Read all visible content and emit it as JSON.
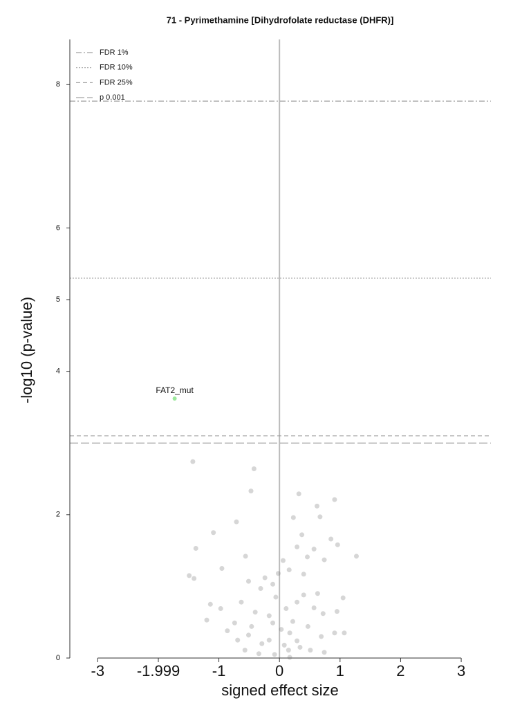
{
  "chart_data": {
    "type": "scatter",
    "title": "71 - Pyrimethamine [Dihydrofolate reductase (DHFR)]",
    "xlabel": "signed effect size",
    "ylabel": "-log10 (p-value)",
    "xlim": [
      -3.46,
      3.49
    ],
    "ylim": [
      0,
      8.63
    ],
    "xticks": [
      -3,
      -1.999,
      -1,
      0,
      1,
      2,
      3
    ],
    "yticks": [
      0,
      2,
      4,
      5,
      6,
      8
    ],
    "legend": "upper left",
    "vlines": [
      0
    ],
    "hlines": [
      {
        "name": "FDR 1%",
        "y": 7.77,
        "style": "dashdot",
        "color": "#888888"
      },
      {
        "name": "FDR 10%",
        "y": 5.3,
        "style": "dotted",
        "color": "#999999"
      },
      {
        "name": "FDR 25%",
        "y": 3.1,
        "style": "dashed",
        "color": "#999999"
      },
      {
        "name": "p 0.001",
        "y": 3.0,
        "style": "longdash",
        "color": "#888888"
      }
    ],
    "series": [
      {
        "color": "#777777",
        "x": [
          -1.43,
          -0.42,
          -0.47,
          0.32,
          0.23,
          0.62,
          0.91,
          -0.71,
          -1.09,
          -1.38,
          1.27,
          0.37,
          0.67,
          0.85,
          0.96,
          0.57,
          0.16,
          -0.02,
          -0.06,
          -1.49,
          -1.41,
          -1.14,
          -0.95,
          -0.56,
          -0.24,
          0.63,
          1.05,
          0.95,
          1.07,
          0.72,
          0.47,
          0.22,
          -0.11,
          0.08,
          -0.29,
          -0.51,
          -0.74,
          -0.86,
          0.15,
          -0.08,
          0.29,
          0.51,
          0.74,
          -0.57,
          -0.34,
          -1.2,
          -0.97,
          0.4,
          0.29,
          0.11,
          -0.17,
          -0.4,
          -0.63,
          0.57,
          0.69,
          0.91,
          0.03,
          0.17,
          0.34,
          -0.17,
          -0.46,
          -0.69,
          0.74,
          0.46,
          0.29,
          -0.11,
          -0.31,
          0.4,
          0.06,
          -0.51,
          0.17
        ],
        "y": [
          2.74,
          2.64,
          2.33,
          2.29,
          1.96,
          2.12,
          2.21,
          1.9,
          1.75,
          1.53,
          1.42,
          1.72,
          1.97,
          1.66,
          1.58,
          1.52,
          1.23,
          1.18,
          0.85,
          1.15,
          1.11,
          0.75,
          1.25,
          1.42,
          1.12,
          0.9,
          0.84,
          0.65,
          0.35,
          0.62,
          0.44,
          0.51,
          0.49,
          0.18,
          0.2,
          0.32,
          0.49,
          0.38,
          0.11,
          0.05,
          0.24,
          0.11,
          0.08,
          0.11,
          0.06,
          0.53,
          0.69,
          0.88,
          0.78,
          0.69,
          0.59,
          0.64,
          0.78,
          0.7,
          0.3,
          0.35,
          0.4,
          0.35,
          0.15,
          0.25,
          0.44,
          0.25,
          1.37,
          1.41,
          1.55,
          1.03,
          0.97,
          1.17,
          1.36,
          1.07,
          0.01
        ]
      }
    ],
    "annotations": [
      {
        "text": "FAT2_mut",
        "x": -1.73,
        "y": 3.62,
        "color": "#9be89b"
      }
    ]
  }
}
